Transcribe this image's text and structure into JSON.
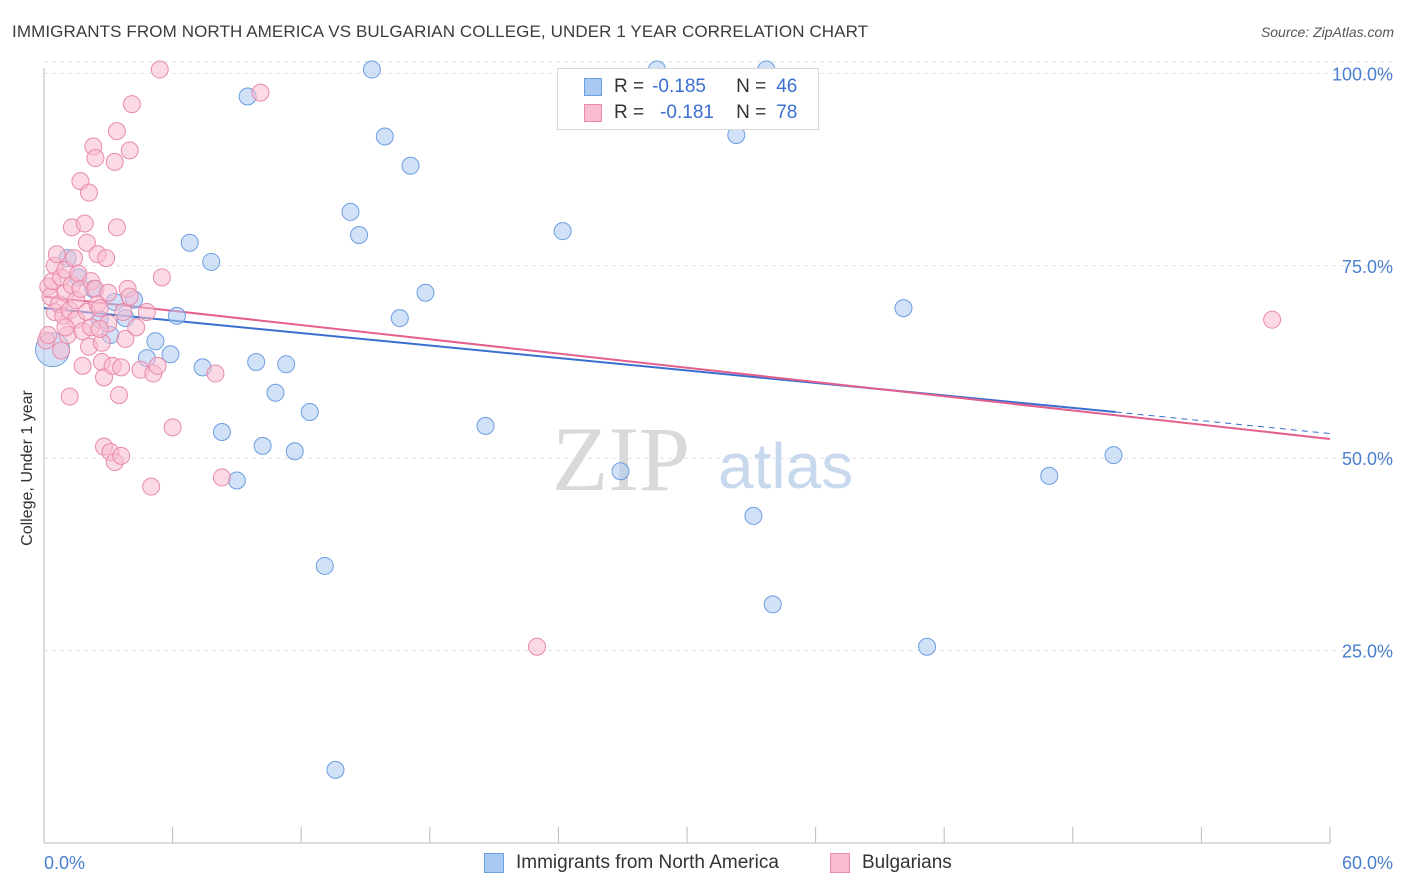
{
  "title": "IMMIGRANTS FROM NORTH AMERICA VS BULGARIAN COLLEGE, UNDER 1 YEAR CORRELATION CHART",
  "source": "Source: ZipAtlas.com",
  "watermark": {
    "zip": "ZIP",
    "atlas": "atlas"
  },
  "legend": {
    "rows": [
      {
        "r_label": "R =",
        "r_value": "-0.185",
        "n_label": "N =",
        "n_value": "46",
        "color": "#a9c8f2",
        "border": "#6d9ee0"
      },
      {
        "r_label": "R =",
        "r_value": "-0.181",
        "n_label": "N =",
        "n_value": "78",
        "color": "#f7bcd0",
        "border": "#e98aa9"
      }
    ]
  },
  "bottom_legend": [
    {
      "label": "Immigrants from North America",
      "color": "#a9c8f2",
      "border": "#6d9ee0"
    },
    {
      "label": "Bulgarians",
      "color": "#f7bcd0",
      "border": "#e98aa9"
    }
  ],
  "chart_data": {
    "type": "scatter",
    "title": "IMMIGRANTS FROM NORTH AMERICA VS BULGARIAN COLLEGE, UNDER 1 YEAR CORRELATION CHART",
    "xlabel": "",
    "ylabel": "College, Under 1 year",
    "xlim": [
      0,
      60
    ],
    "ylim": [
      0,
      102
    ],
    "x_tick_labels": [
      "0.0%",
      "60.0%"
    ],
    "y_ticks": [
      25,
      50,
      75,
      100
    ],
    "y_tick_labels": [
      "25.0%",
      "50.0%",
      "75.0%",
      "100.0%"
    ],
    "grid": true,
    "series": [
      {
        "name": "Immigrants from North America",
        "color": "#6d9ee0",
        "fill": "#a9c8f2",
        "trend_line": {
          "x0": 0,
          "y0": 69.5,
          "x1": 50,
          "y1": 56.0,
          "dashed_to_x": 60,
          "dashed_to_y": 53.2,
          "color": "#3a6fd0"
        },
        "points": [
          {
            "x": 0.4,
            "y": 64.1,
            "size": "large"
          },
          {
            "x": 1.1,
            "y": 76.0
          },
          {
            "x": 2.3,
            "y": 72.0
          },
          {
            "x": 3.3,
            "y": 70.3
          },
          {
            "x": 3.8,
            "y": 68.2
          },
          {
            "x": 4.2,
            "y": 70.6
          },
          {
            "x": 4.8,
            "y": 63.0
          },
          {
            "x": 5.2,
            "y": 65.2
          },
          {
            "x": 5.9,
            "y": 63.5
          },
          {
            "x": 6.2,
            "y": 68.5
          },
          {
            "x": 6.8,
            "y": 78.0
          },
          {
            "x": 7.4,
            "y": 61.8
          },
          {
            "x": 7.8,
            "y": 75.5
          },
          {
            "x": 8.3,
            "y": 53.4
          },
          {
            "x": 9.0,
            "y": 47.1
          },
          {
            "x": 9.5,
            "y": 97.0
          },
          {
            "x": 9.9,
            "y": 62.5
          },
          {
            "x": 10.2,
            "y": 51.6
          },
          {
            "x": 10.8,
            "y": 58.5
          },
          {
            "x": 11.3,
            "y": 62.2
          },
          {
            "x": 11.7,
            "y": 50.9
          },
          {
            "x": 12.4,
            "y": 56.0
          },
          {
            "x": 13.1,
            "y": 36.0
          },
          {
            "x": 13.6,
            "y": 9.5
          },
          {
            "x": 14.3,
            "y": 82.0
          },
          {
            "x": 14.7,
            "y": 79.0
          },
          {
            "x": 15.3,
            "y": 100.5
          },
          {
            "x": 15.9,
            "y": 91.8
          },
          {
            "x": 16.6,
            "y": 68.2
          },
          {
            "x": 17.1,
            "y": 88.0
          },
          {
            "x": 17.8,
            "y": 71.5
          },
          {
            "x": 20.6,
            "y": 54.2
          },
          {
            "x": 24.2,
            "y": 79.5
          },
          {
            "x": 26.9,
            "y": 48.3
          },
          {
            "x": 28.6,
            "y": 100.5
          },
          {
            "x": 32.3,
            "y": 92.0
          },
          {
            "x": 33.1,
            "y": 42.5
          },
          {
            "x": 33.7,
            "y": 100.5
          },
          {
            "x": 34.0,
            "y": 31.0
          },
          {
            "x": 40.1,
            "y": 69.5
          },
          {
            "x": 41.2,
            "y": 25.5
          },
          {
            "x": 46.9,
            "y": 47.7
          },
          {
            "x": 49.9,
            "y": 50.4
          },
          {
            "x": 1.6,
            "y": 73.5
          },
          {
            "x": 2.6,
            "y": 68.0
          },
          {
            "x": 3.1,
            "y": 66.0
          }
        ]
      },
      {
        "name": "Bulgarians",
        "color": "#e98aa9",
        "fill": "#f7bcd0",
        "trend_line": {
          "x0": 0,
          "y0": 71.0,
          "x1": 60,
          "y1": 52.5,
          "color": "#e35f8c"
        },
        "points": [
          {
            "x": 0.1,
            "y": 65.3
          },
          {
            "x": 0.2,
            "y": 72.3
          },
          {
            "x": 0.3,
            "y": 71.0
          },
          {
            "x": 0.4,
            "y": 73.0
          },
          {
            "x": 0.5,
            "y": 75.0
          },
          {
            "x": 0.5,
            "y": 69.0
          },
          {
            "x": 0.6,
            "y": 76.5
          },
          {
            "x": 0.7,
            "y": 70.0
          },
          {
            "x": 0.8,
            "y": 73.5
          },
          {
            "x": 0.9,
            "y": 68.5
          },
          {
            "x": 1.0,
            "y": 71.5
          },
          {
            "x": 1.0,
            "y": 74.5
          },
          {
            "x": 1.1,
            "y": 66.0
          },
          {
            "x": 1.2,
            "y": 69.2
          },
          {
            "x": 1.2,
            "y": 58.0
          },
          {
            "x": 1.3,
            "y": 72.5
          },
          {
            "x": 1.3,
            "y": 80.0
          },
          {
            "x": 1.4,
            "y": 76.0
          },
          {
            "x": 1.5,
            "y": 70.5
          },
          {
            "x": 1.5,
            "y": 68.0
          },
          {
            "x": 1.6,
            "y": 74.0
          },
          {
            "x": 1.7,
            "y": 86.0
          },
          {
            "x": 1.7,
            "y": 72.0
          },
          {
            "x": 1.8,
            "y": 66.5
          },
          {
            "x": 1.8,
            "y": 62.0
          },
          {
            "x": 1.9,
            "y": 80.5
          },
          {
            "x": 2.0,
            "y": 78.0
          },
          {
            "x": 2.0,
            "y": 69.0
          },
          {
            "x": 2.1,
            "y": 84.5
          },
          {
            "x": 2.1,
            "y": 64.5
          },
          {
            "x": 2.2,
            "y": 67.0
          },
          {
            "x": 2.2,
            "y": 73.0
          },
          {
            "x": 2.3,
            "y": 90.5
          },
          {
            "x": 2.4,
            "y": 89.0
          },
          {
            "x": 2.4,
            "y": 72.0
          },
          {
            "x": 2.5,
            "y": 70.0
          },
          {
            "x": 2.5,
            "y": 76.5
          },
          {
            "x": 2.6,
            "y": 69.5
          },
          {
            "x": 2.7,
            "y": 65.0
          },
          {
            "x": 2.7,
            "y": 62.5
          },
          {
            "x": 2.8,
            "y": 51.5
          },
          {
            "x": 2.8,
            "y": 60.5
          },
          {
            "x": 2.9,
            "y": 76.0
          },
          {
            "x": 3.0,
            "y": 71.5
          },
          {
            "x": 3.0,
            "y": 67.5
          },
          {
            "x": 3.1,
            "y": 50.8
          },
          {
            "x": 3.2,
            "y": 62.0
          },
          {
            "x": 3.3,
            "y": 49.5
          },
          {
            "x": 3.3,
            "y": 88.5
          },
          {
            "x": 3.4,
            "y": 92.5
          },
          {
            "x": 3.4,
            "y": 80.0
          },
          {
            "x": 3.5,
            "y": 58.2
          },
          {
            "x": 3.6,
            "y": 50.3
          },
          {
            "x": 3.6,
            "y": 61.8
          },
          {
            "x": 3.7,
            "y": 69.0
          },
          {
            "x": 3.8,
            "y": 65.5
          },
          {
            "x": 3.9,
            "y": 72.0
          },
          {
            "x": 4.0,
            "y": 90.0
          },
          {
            "x": 4.0,
            "y": 71.0
          },
          {
            "x": 4.1,
            "y": 96.0
          },
          {
            "x": 4.3,
            "y": 67.0
          },
          {
            "x": 4.5,
            "y": 61.5
          },
          {
            "x": 4.8,
            "y": 69.0
          },
          {
            "x": 5.0,
            "y": 46.3
          },
          {
            "x": 5.1,
            "y": 61.0
          },
          {
            "x": 5.3,
            "y": 62.0
          },
          {
            "x": 5.4,
            "y": 100.5
          },
          {
            "x": 5.5,
            "y": 73.5
          },
          {
            "x": 6.0,
            "y": 54.0
          },
          {
            "x": 8.0,
            "y": 61.0
          },
          {
            "x": 8.3,
            "y": 47.5
          },
          {
            "x": 10.1,
            "y": 97.5
          },
          {
            "x": 0.2,
            "y": 66.0
          },
          {
            "x": 0.8,
            "y": 64.0
          },
          {
            "x": 1.0,
            "y": 67.0
          },
          {
            "x": 23.0,
            "y": 25.5
          },
          {
            "x": 57.3,
            "y": 68.0
          },
          {
            "x": 2.6,
            "y": 66.8
          }
        ]
      }
    ]
  }
}
